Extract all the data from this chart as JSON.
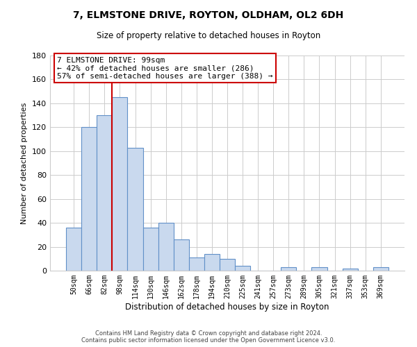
{
  "title": "7, ELMSTONE DRIVE, ROYTON, OLDHAM, OL2 6DH",
  "subtitle": "Size of property relative to detached houses in Royton",
  "xlabel": "Distribution of detached houses by size in Royton",
  "ylabel": "Number of detached properties",
  "bin_labels": [
    "50sqm",
    "66sqm",
    "82sqm",
    "98sqm",
    "114sqm",
    "130sqm",
    "146sqm",
    "162sqm",
    "178sqm",
    "194sqm",
    "210sqm",
    "225sqm",
    "241sqm",
    "257sqm",
    "273sqm",
    "289sqm",
    "305sqm",
    "321sqm",
    "337sqm",
    "353sqm",
    "369sqm"
  ],
  "bar_values": [
    36,
    120,
    130,
    145,
    103,
    36,
    40,
    26,
    11,
    14,
    10,
    4,
    0,
    0,
    3,
    0,
    3,
    0,
    2,
    0,
    3
  ],
  "bar_color": "#c9d9ee",
  "bar_edge_color": "#6090c8",
  "vline_color": "#cc0000",
  "annotation_text": "7 ELMSTONE DRIVE: 99sqm\n← 42% of detached houses are smaller (286)\n57% of semi-detached houses are larger (388) →",
  "annotation_box_color": "#ffffff",
  "annotation_box_edge": "#cc0000",
  "ylim": [
    0,
    180
  ],
  "yticks": [
    0,
    20,
    40,
    60,
    80,
    100,
    120,
    140,
    160,
    180
  ],
  "footer_line1": "Contains HM Land Registry data © Crown copyright and database right 2024.",
  "footer_line2": "Contains public sector information licensed under the Open Government Licence v3.0.",
  "background_color": "#ffffff",
  "grid_color": "#cccccc"
}
